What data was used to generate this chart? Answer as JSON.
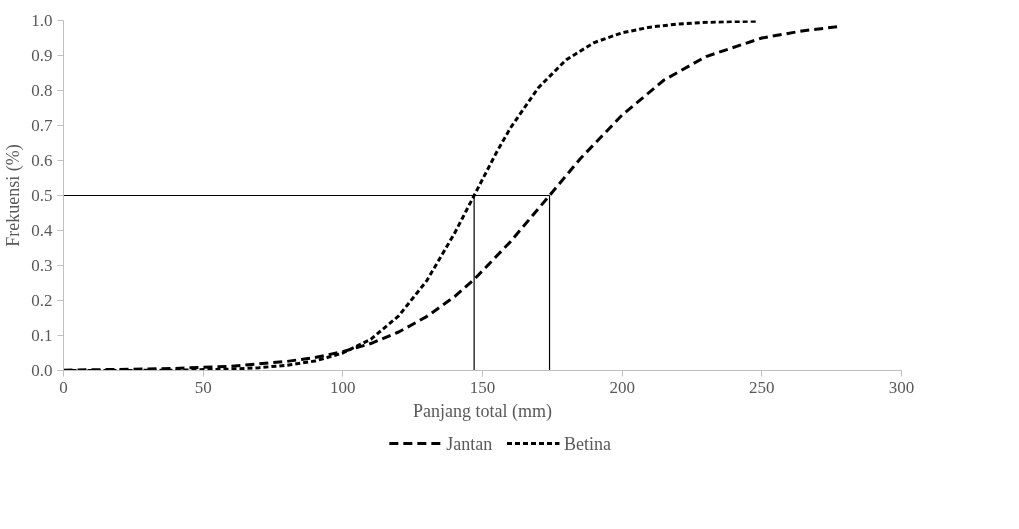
{
  "chart_data": {
    "type": "line",
    "xlabel": "Panjang total (mm)",
    "ylabel": "Frekuensi (%)",
    "xlim": [
      0,
      300
    ],
    "xticks": [
      0,
      50,
      100,
      150,
      200,
      250,
      300
    ],
    "ylim": [
      0,
      1
    ],
    "yticks": [
      {
        "value": 0,
        "label": "0.0"
      },
      {
        "value": 0.1,
        "label": "0.1"
      },
      {
        "value": 0.2,
        "label": "0.2"
      },
      {
        "value": 0.3,
        "label": "0.3"
      },
      {
        "value": 0.4,
        "label": "0.4"
      },
      {
        "value": 0.5,
        "label": "0.5"
      },
      {
        "value": 0.6,
        "label": "0.6"
      },
      {
        "value": 0.7,
        "label": "0.7"
      },
      {
        "value": 0.8,
        "label": "0.8"
      },
      {
        "value": 0.9,
        "label": "0.9"
      },
      {
        "value": 1,
        "label": "1.0"
      }
    ],
    "grid": false,
    "legend": "bottom",
    "marker": "none",
    "series": [
      {
        "name": "Jantan",
        "color": "#000000",
        "line_style": "dashed",
        "x": [
          0,
          20,
          40,
          60,
          80,
          90,
          100,
          110,
          120,
          130,
          140,
          147,
          160,
          174,
          185,
          200,
          215,
          230,
          250,
          265,
          277
        ],
        "values": [
          0.001,
          0.003,
          0.006,
          0.012,
          0.026,
          0.037,
          0.054,
          0.077,
          0.11,
          0.154,
          0.211,
          0.26,
          0.368,
          0.5,
          0.605,
          0.73,
          0.83,
          0.897,
          0.95,
          0.971,
          0.982
        ]
      },
      {
        "name": "Betina",
        "color": "#000000",
        "line_style": "dotted",
        "x": [
          0,
          20,
          40,
          60,
          70,
          80,
          90,
          100,
          110,
          120,
          130,
          140,
          147,
          155,
          160,
          170,
          180,
          190,
          200,
          210,
          220,
          230,
          240,
          248
        ],
        "values": [
          0.0,
          0.0,
          0.001,
          0.004,
          0.008,
          0.015,
          0.027,
          0.05,
          0.089,
          0.156,
          0.256,
          0.392,
          0.5,
          0.623,
          0.693,
          0.808,
          0.888,
          0.937,
          0.965,
          0.981,
          0.99,
          0.995,
          0.997,
          0.998
        ]
      },
      {
        "color": "#000000",
        "line_style": "solid",
        "x": [
          0,
          174
        ],
        "values": [
          0.5,
          0.5
        ]
      },
      {
        "color": "#000000",
        "line_style": "solid",
        "x": [
          147,
          147
        ],
        "values": [
          0,
          0.5
        ]
      },
      {
        "color": "#000000",
        "line_style": "solid",
        "x": [
          174,
          174
        ],
        "values": [
          0,
          0.5
        ]
      }
    ]
  }
}
